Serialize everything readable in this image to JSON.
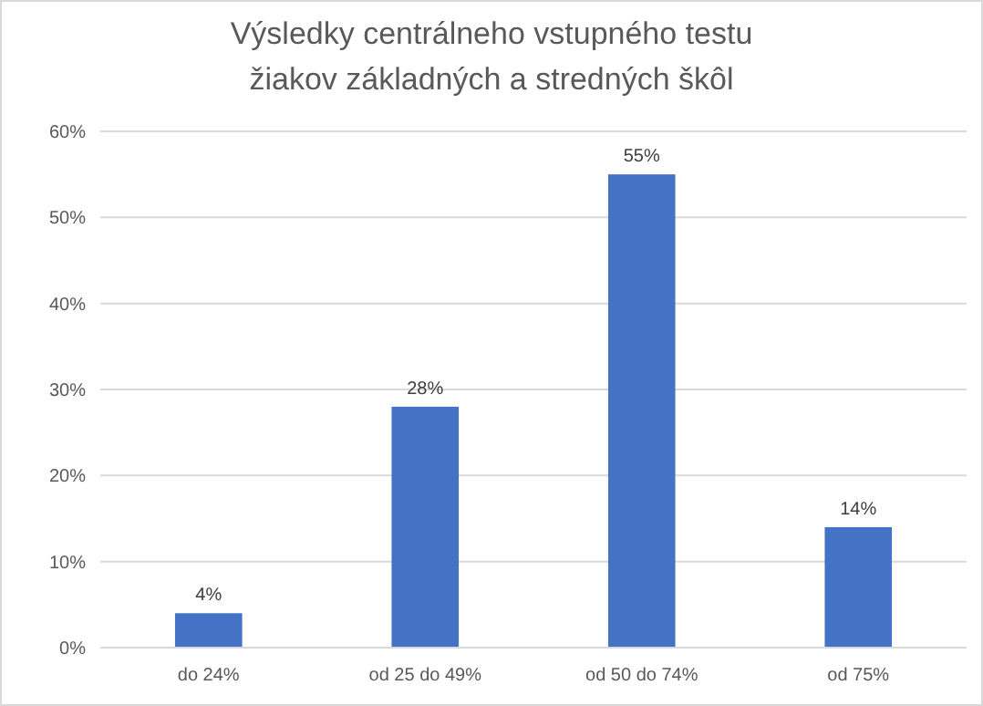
{
  "chart_data": {
    "type": "bar",
    "title": "Výsledky centrálneho vstupného testu\nžiakov základných a stredných škôl",
    "categories": [
      "do 24%",
      "od 25 do 49%",
      "od 50 do 74%",
      "od 75%"
    ],
    "values": [
      4,
      28,
      55,
      14
    ],
    "color": "#4472c4",
    "value_labels": [
      "4%",
      "28%",
      "55%",
      "14%"
    ],
    "ylim": [
      0,
      60
    ],
    "yticks": [
      {
        "value": 0,
        "label": "0%"
      },
      {
        "value": 10,
        "label": "10%"
      },
      {
        "value": 20,
        "label": "20%"
      },
      {
        "value": 30,
        "label": "30%"
      },
      {
        "value": 40,
        "label": "40%"
      },
      {
        "value": 50,
        "label": "50%"
      },
      {
        "value": 60,
        "label": "60%"
      }
    ],
    "grid": "y"
  }
}
